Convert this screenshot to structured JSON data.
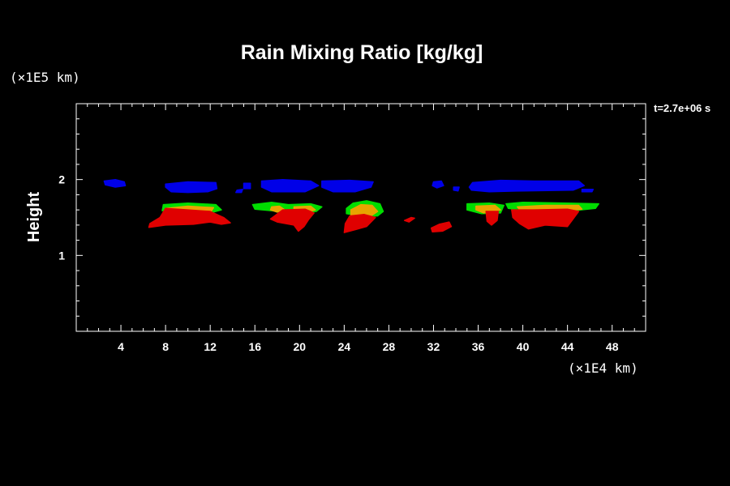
{
  "chart_data": {
    "type": "contour",
    "title": "Rain Mixing Ratio [kg/kg]",
    "xlabel": "",
    "ylabel": "Height",
    "x_unit": "(×1E4 km)",
    "y_unit": "(×1E5 km)",
    "time_annotation": "t=2.7e+06 s",
    "xlim": [
      0,
      51
    ],
    "ylim": [
      0,
      3
    ],
    "x_ticks": [
      4,
      8,
      12,
      16,
      20,
      24,
      28,
      32,
      36,
      40,
      44,
      48
    ],
    "y_ticks": [
      1,
      2
    ],
    "x_minor_step": 1,
    "y_minor_step": 0.2,
    "grid": false,
    "colors": {
      "low": "#0000e8",
      "mid": "#00dd00",
      "high": "#e8a400",
      "max": "#e00000",
      "axis": "#ffffff",
      "background": "#000000"
    },
    "regions": [
      {
        "level": "low",
        "points": [
          [
            2.5,
            1.98
          ],
          [
            3.5,
            2.0
          ],
          [
            4.3,
            1.97
          ],
          [
            4.4,
            1.92
          ],
          [
            3.5,
            1.9
          ],
          [
            2.6,
            1.93
          ]
        ]
      },
      {
        "level": "low",
        "points": [
          [
            8.0,
            1.94
          ],
          [
            10.0,
            1.97
          ],
          [
            12.5,
            1.96
          ],
          [
            12.6,
            1.88
          ],
          [
            11.8,
            1.84
          ],
          [
            10.0,
            1.83
          ],
          [
            8.5,
            1.84
          ],
          [
            8.0,
            1.9
          ]
        ]
      },
      {
        "level": "low",
        "points": [
          [
            14.4,
            1.86
          ],
          [
            14.9,
            1.87
          ],
          [
            14.8,
            1.83
          ],
          [
            14.3,
            1.83
          ]
        ]
      },
      {
        "level": "low",
        "points": [
          [
            15.0,
            1.95
          ],
          [
            15.6,
            1.95
          ],
          [
            15.6,
            1.88
          ],
          [
            15.0,
            1.88
          ]
        ]
      },
      {
        "level": "low",
        "points": [
          [
            16.6,
            1.98
          ],
          [
            18.5,
            2.0
          ],
          [
            21.0,
            1.98
          ],
          [
            21.7,
            1.92
          ],
          [
            20.5,
            1.84
          ],
          [
            17.5,
            1.84
          ],
          [
            16.6,
            1.9
          ]
        ]
      },
      {
        "level": "low",
        "points": [
          [
            22.0,
            1.98
          ],
          [
            24.5,
            1.99
          ],
          [
            26.6,
            1.97
          ],
          [
            26.4,
            1.9
          ],
          [
            25.0,
            1.84
          ],
          [
            23.0,
            1.84
          ],
          [
            22.0,
            1.9
          ]
        ]
      },
      {
        "level": "low",
        "points": [
          [
            32.0,
            1.97
          ],
          [
            32.7,
            1.98
          ],
          [
            32.9,
            1.92
          ],
          [
            32.3,
            1.89
          ],
          [
            31.9,
            1.92
          ]
        ]
      },
      {
        "level": "low",
        "points": [
          [
            33.8,
            1.9
          ],
          [
            34.3,
            1.9
          ],
          [
            34.2,
            1.85
          ],
          [
            33.8,
            1.86
          ]
        ]
      },
      {
        "level": "low",
        "points": [
          [
            35.5,
            1.96
          ],
          [
            38.0,
            1.99
          ],
          [
            41.0,
            1.98
          ],
          [
            45.0,
            1.98
          ],
          [
            45.5,
            1.92
          ],
          [
            44.5,
            1.86
          ],
          [
            40.0,
            1.85
          ],
          [
            37.0,
            1.84
          ],
          [
            35.4,
            1.86
          ],
          [
            35.2,
            1.9
          ]
        ]
      },
      {
        "level": "low",
        "points": [
          [
            45.3,
            1.87
          ],
          [
            46.3,
            1.87
          ],
          [
            46.2,
            1.84
          ],
          [
            45.3,
            1.84
          ]
        ]
      },
      {
        "level": "mid",
        "points": [
          [
            7.8,
            1.67
          ],
          [
            10.0,
            1.69
          ],
          [
            12.5,
            1.67
          ],
          [
            13.0,
            1.6
          ],
          [
            12.0,
            1.56
          ],
          [
            9.5,
            1.57
          ],
          [
            7.7,
            1.59
          ]
        ]
      },
      {
        "level": "mid",
        "points": [
          [
            15.8,
            1.67
          ],
          [
            17.5,
            1.7
          ],
          [
            19.0,
            1.67
          ],
          [
            21.0,
            1.68
          ],
          [
            22.0,
            1.64
          ],
          [
            21.5,
            1.58
          ],
          [
            19.5,
            1.56
          ],
          [
            17.5,
            1.59
          ],
          [
            16.0,
            1.61
          ]
        ]
      },
      {
        "level": "mid",
        "points": [
          [
            24.2,
            1.62
          ],
          [
            24.8,
            1.69
          ],
          [
            26.0,
            1.72
          ],
          [
            27.2,
            1.68
          ],
          [
            27.5,
            1.58
          ],
          [
            27.0,
            1.52
          ],
          [
            25.5,
            1.52
          ],
          [
            24.2,
            1.55
          ]
        ]
      },
      {
        "level": "mid",
        "points": [
          [
            35.0,
            1.68
          ],
          [
            37.0,
            1.69
          ],
          [
            38.3,
            1.66
          ],
          [
            38.0,
            1.56
          ],
          [
            36.3,
            1.55
          ],
          [
            35.0,
            1.6
          ]
        ]
      },
      {
        "level": "mid",
        "points": [
          [
            38.5,
            1.68
          ],
          [
            40.0,
            1.7
          ],
          [
            44.0,
            1.69
          ],
          [
            46.8,
            1.68
          ],
          [
            46.5,
            1.62
          ],
          [
            44.5,
            1.59
          ],
          [
            40.5,
            1.59
          ],
          [
            38.7,
            1.62
          ]
        ]
      },
      {
        "level": "high",
        "points": [
          [
            8.0,
            1.62
          ],
          [
            10.0,
            1.65
          ],
          [
            12.3,
            1.63
          ],
          [
            12.0,
            1.56
          ],
          [
            9.5,
            1.56
          ],
          [
            8.0,
            1.58
          ]
        ]
      },
      {
        "level": "high",
        "points": [
          [
            17.5,
            1.64
          ],
          [
            18.2,
            1.65
          ],
          [
            18.6,
            1.61
          ],
          [
            18.0,
            1.57
          ],
          [
            17.4,
            1.6
          ]
        ]
      },
      {
        "level": "high",
        "points": [
          [
            19.5,
            1.64
          ],
          [
            21.0,
            1.65
          ],
          [
            21.4,
            1.6
          ],
          [
            20.5,
            1.56
          ],
          [
            19.5,
            1.57
          ]
        ]
      },
      {
        "level": "high",
        "points": [
          [
            24.6,
            1.6
          ],
          [
            25.5,
            1.67
          ],
          [
            26.5,
            1.66
          ],
          [
            27.0,
            1.58
          ],
          [
            26.2,
            1.5
          ],
          [
            24.6,
            1.53
          ]
        ]
      },
      {
        "level": "high",
        "points": [
          [
            35.8,
            1.65
          ],
          [
            37.5,
            1.66
          ],
          [
            38.0,
            1.6
          ],
          [
            36.5,
            1.56
          ],
          [
            35.8,
            1.6
          ]
        ]
      },
      {
        "level": "high",
        "points": [
          [
            39.5,
            1.64
          ],
          [
            42.0,
            1.66
          ],
          [
            45.0,
            1.66
          ],
          [
            45.3,
            1.61
          ],
          [
            43.0,
            1.58
          ],
          [
            39.8,
            1.59
          ]
        ]
      },
      {
        "level": "max",
        "points": [
          [
            8.0,
            1.62
          ],
          [
            10.0,
            1.6
          ],
          [
            12.0,
            1.58
          ],
          [
            13.2,
            1.5
          ],
          [
            13.8,
            1.43
          ],
          [
            13.0,
            1.41
          ],
          [
            12.0,
            1.44
          ],
          [
            10.5,
            1.41
          ],
          [
            8.0,
            1.4
          ],
          [
            6.5,
            1.37
          ],
          [
            6.6,
            1.42
          ],
          [
            7.5,
            1.5
          ]
        ]
      },
      {
        "level": "max",
        "points": [
          [
            18.5,
            1.6
          ],
          [
            20.5,
            1.61
          ],
          [
            21.3,
            1.56
          ],
          [
            20.8,
            1.47
          ],
          [
            20.4,
            1.38
          ],
          [
            19.9,
            1.32
          ],
          [
            19.5,
            1.4
          ],
          [
            18.0,
            1.44
          ],
          [
            17.4,
            1.48
          ]
        ]
      },
      {
        "level": "max",
        "points": [
          [
            24.5,
            1.52
          ],
          [
            25.8,
            1.54
          ],
          [
            26.8,
            1.5
          ],
          [
            26.0,
            1.38
          ],
          [
            25.0,
            1.34
          ],
          [
            24.0,
            1.3
          ],
          [
            24.1,
            1.42
          ]
        ]
      },
      {
        "level": "max",
        "points": [
          [
            29.4,
            1.46
          ],
          [
            30.0,
            1.5
          ],
          [
            30.3,
            1.49
          ],
          [
            29.8,
            1.44
          ]
        ]
      },
      {
        "level": "max",
        "points": [
          [
            31.8,
            1.36
          ],
          [
            32.5,
            1.41
          ],
          [
            33.4,
            1.44
          ],
          [
            33.6,
            1.38
          ],
          [
            32.8,
            1.32
          ],
          [
            31.9,
            1.31
          ]
        ]
      },
      {
        "level": "max",
        "points": [
          [
            36.7,
            1.58
          ],
          [
            37.8,
            1.58
          ],
          [
            37.7,
            1.46
          ],
          [
            37.2,
            1.4
          ],
          [
            36.8,
            1.45
          ]
        ]
      },
      {
        "level": "max",
        "points": [
          [
            39.0,
            1.6
          ],
          [
            41.0,
            1.6
          ],
          [
            44.0,
            1.61
          ],
          [
            45.0,
            1.58
          ],
          [
            44.5,
            1.48
          ],
          [
            44.0,
            1.38
          ],
          [
            42.0,
            1.4
          ],
          [
            40.5,
            1.35
          ],
          [
            39.7,
            1.42
          ],
          [
            39.1,
            1.5
          ]
        ]
      }
    ]
  }
}
